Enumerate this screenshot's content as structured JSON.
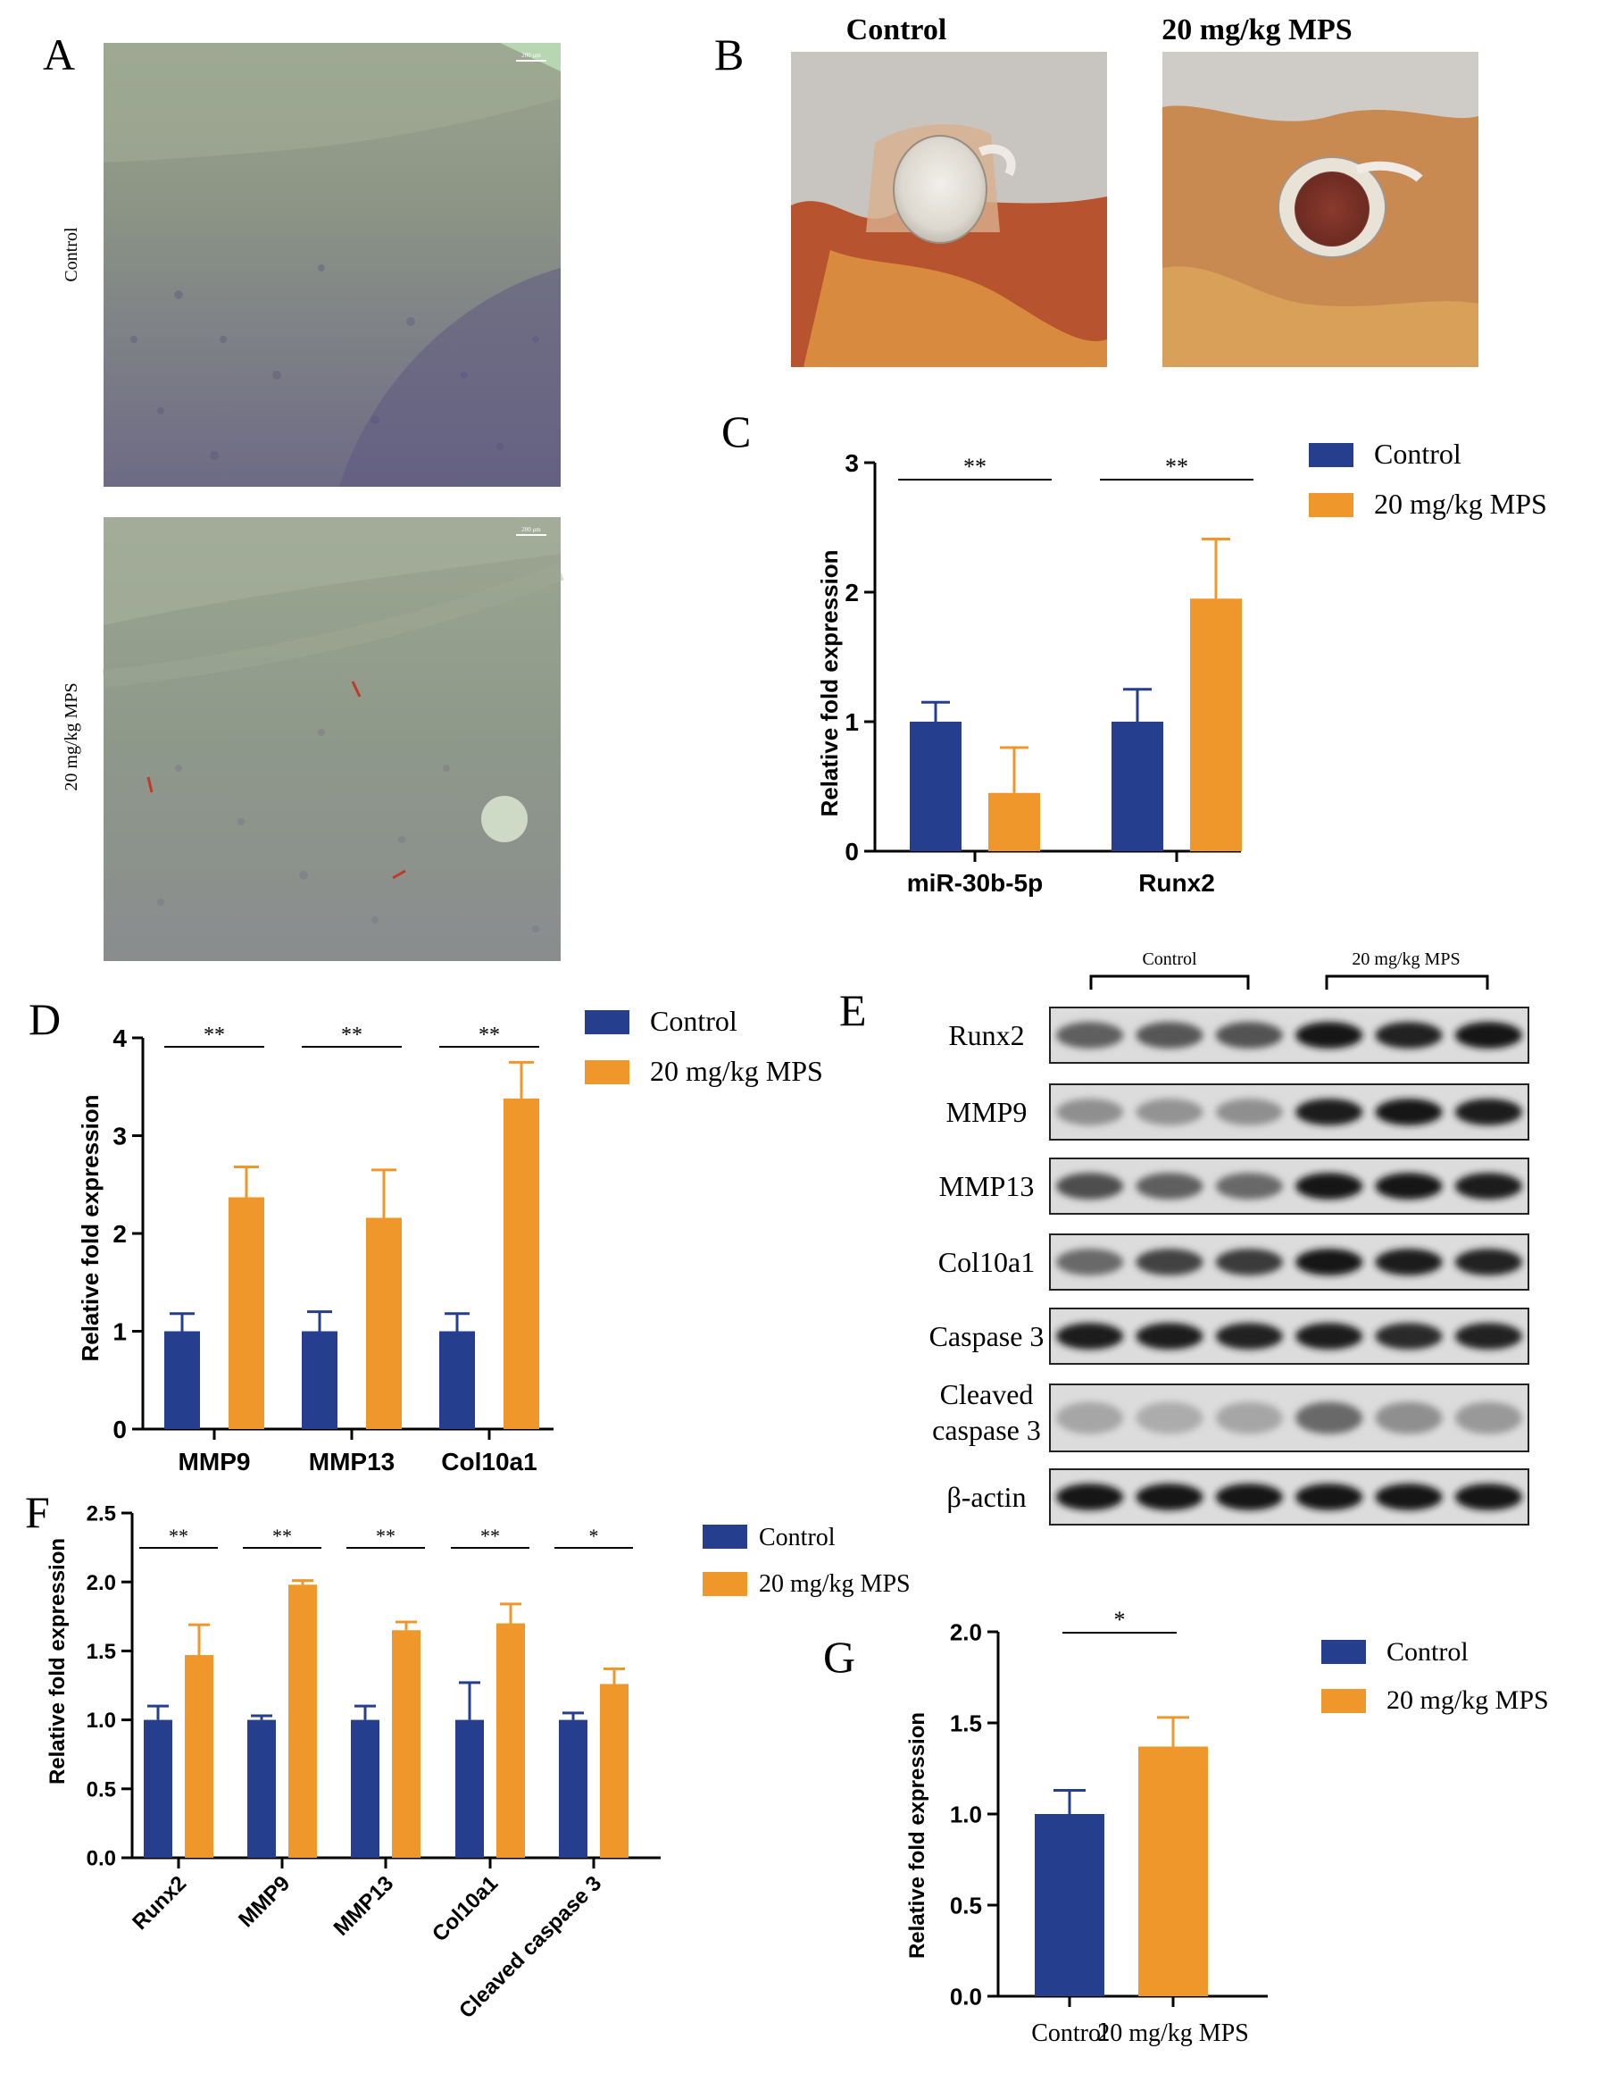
{
  "colors": {
    "control": "#253f8e",
    "mps": "#f0972b",
    "photo_bg": "#c9c6c1",
    "histo": "#8f9a88",
    "histo_dark": "#6f6a86"
  },
  "panel_labels": [
    "A",
    "B",
    "C",
    "D",
    "E",
    "F",
    "G"
  ],
  "panel_a": {
    "top_label": "Control",
    "bottom_label": "20 mg/kg MPS",
    "scale_text_top": "200 μm",
    "scale_text_bottom": "200 μm"
  },
  "panel_b": {
    "left_title": "Control",
    "right_title": "20 mg/kg MPS"
  },
  "panel_e": {
    "group_left": "Control",
    "group_right": "20 mg/kg MPS",
    "rows": [
      {
        "label": "Runx2",
        "bands": [
          0.55,
          0.6,
          0.62,
          0.95,
          0.88,
          0.92
        ]
      },
      {
        "label": "MMP9",
        "bands": [
          0.3,
          0.28,
          0.3,
          0.9,
          0.95,
          0.9
        ]
      },
      {
        "label": "MMP13",
        "bands": [
          0.65,
          0.55,
          0.5,
          0.95,
          0.92,
          0.9
        ]
      },
      {
        "label": "Col10a1",
        "bands": [
          0.5,
          0.7,
          0.75,
          0.95,
          0.9,
          0.88
        ]
      },
      {
        "label": "Caspase 3",
        "bands": [
          0.9,
          0.9,
          0.88,
          0.9,
          0.82,
          0.88
        ]
      },
      {
        "label_lines": [
          "Cleaved",
          "caspase 3"
        ],
        "bands": [
          0.18,
          0.15,
          0.18,
          0.5,
          0.3,
          0.25
        ]
      },
      {
        "label": "β-actin",
        "bands": [
          0.95,
          0.95,
          0.95,
          0.95,
          0.95,
          0.95
        ]
      }
    ]
  },
  "chart_data": [
    {
      "panel": "C",
      "type": "bar",
      "categories": [
        "miR-30b-5p",
        "Runx2"
      ],
      "series": [
        {
          "name": "Control",
          "values": [
            1.0,
            1.0
          ],
          "errors": [
            0.15,
            0.25
          ]
        },
        {
          "name": "20 mg/kg MPS",
          "values": [
            0.45,
            1.95
          ],
          "errors": [
            0.35,
            0.46
          ]
        }
      ],
      "ylabel": "Relative fold expression",
      "ylim": [
        0,
        3
      ],
      "yticks": [
        "0",
        "1",
        "2",
        "3"
      ],
      "significance": [
        "**",
        "**"
      ],
      "legend": "right"
    },
    {
      "panel": "D",
      "type": "bar",
      "categories": [
        "MMP9",
        "MMP13",
        "Col10a1"
      ],
      "series": [
        {
          "name": "Control",
          "values": [
            1.0,
            1.0,
            1.0
          ],
          "errors": [
            0.18,
            0.2,
            0.18
          ]
        },
        {
          "name": "20 mg/kg MPS",
          "values": [
            2.37,
            2.16,
            3.38
          ],
          "errors": [
            0.31,
            0.49,
            0.37
          ]
        }
      ],
      "ylabel": "Relative fold expression",
      "ylim": [
        0,
        4
      ],
      "yticks": [
        "0",
        "1",
        "2",
        "3",
        "4"
      ],
      "significance": [
        "**",
        "**",
        "**"
      ],
      "legend": "right"
    },
    {
      "panel": "F",
      "type": "bar",
      "categories": [
        "Runx2",
        "MMP9",
        "MMP13",
        "Col10a1",
        "Cleaved caspase 3"
      ],
      "series": [
        {
          "name": "Control",
          "values": [
            1.0,
            1.0,
            1.0,
            1.0,
            1.0
          ],
          "errors": [
            0.1,
            0.03,
            0.1,
            0.27,
            0.05
          ]
        },
        {
          "name": "20 mg/kg MPS",
          "values": [
            1.47,
            1.98,
            1.65,
            1.7,
            1.26
          ],
          "errors": [
            0.22,
            0.03,
            0.06,
            0.14,
            0.11
          ]
        }
      ],
      "ylabel": "Relative fold expression",
      "ylim": [
        0,
        2.5
      ],
      "yticks": [
        "0.0",
        "0.5",
        "1.0",
        "1.5",
        "2.0",
        "2.5"
      ],
      "significance": [
        "**",
        "**",
        "**",
        "**",
        "*"
      ],
      "legend": "right"
    },
    {
      "panel": "G",
      "type": "bar",
      "categories": [
        "Control",
        "20 mg/kg  MPS"
      ],
      "values": [
        1.0,
        1.37
      ],
      "errors": [
        0.13,
        0.16
      ],
      "series_names": [
        "Control",
        "20 mg/kg MPS"
      ],
      "ylabel": "Relative fold expression",
      "ylim": [
        0,
        2.0
      ],
      "yticks": [
        "0.0",
        "0.5",
        "1.0",
        "1.5",
        "2.0"
      ],
      "significance": [
        "*"
      ],
      "legend": "right"
    }
  ]
}
